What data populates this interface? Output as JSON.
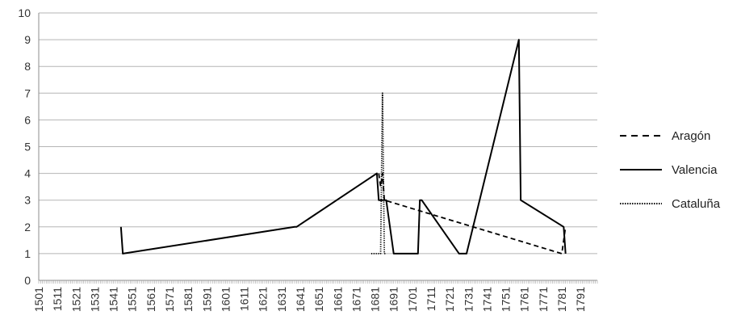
{
  "chart_data": {
    "type": "line",
    "title": "",
    "xlabel": "",
    "ylabel": "",
    "ylim": [
      0,
      10
    ],
    "yticks": [
      0,
      1,
      2,
      3,
      4,
      5,
      6,
      7,
      8,
      9,
      10
    ],
    "xlim": [
      1501,
      1800
    ],
    "xticks": [
      1501,
      1511,
      1521,
      1531,
      1541,
      1551,
      1561,
      1571,
      1581,
      1591,
      1601,
      1611,
      1621,
      1631,
      1641,
      1651,
      1661,
      1671,
      1681,
      1691,
      1701,
      1711,
      1721,
      1731,
      1741,
      1751,
      1761,
      1771,
      1781,
      1791
    ],
    "grid": true,
    "legend_position": "right",
    "series": [
      {
        "name": "Aragón",
        "style": "dashed",
        "color": "#000000",
        "points": [
          [
            1683,
            4
          ],
          [
            1684,
            3.5
          ],
          [
            1685,
            4
          ],
          [
            1686,
            3
          ],
          [
            1781,
            1
          ],
          [
            1782,
            1.5
          ],
          [
            1783,
            2
          ]
        ]
      },
      {
        "name": "Valencia",
        "style": "solid",
        "color": "#000000",
        "points": [
          [
            1545,
            2
          ],
          [
            1546,
            1
          ],
          [
            1638,
            2
          ],
          [
            1639,
            2
          ],
          [
            1682,
            4
          ],
          [
            1683,
            3
          ],
          [
            1685,
            3
          ],
          [
            1687,
            3
          ],
          [
            1691,
            1
          ],
          [
            1692,
            1
          ],
          [
            1704,
            1
          ],
          [
            1705,
            3
          ],
          [
            1706,
            3
          ],
          [
            1726,
            1
          ],
          [
            1730,
            1
          ],
          [
            1758,
            9
          ],
          [
            1759,
            3
          ],
          [
            1782,
            2
          ],
          [
            1783,
            1
          ]
        ]
      },
      {
        "name": "Cataluña",
        "style": "dotted",
        "color": "#000000",
        "points": [
          [
            1679,
            1
          ],
          [
            1684,
            1
          ],
          [
            1685,
            7
          ],
          [
            1686,
            1
          ],
          [
            1687,
            1
          ]
        ]
      }
    ]
  }
}
